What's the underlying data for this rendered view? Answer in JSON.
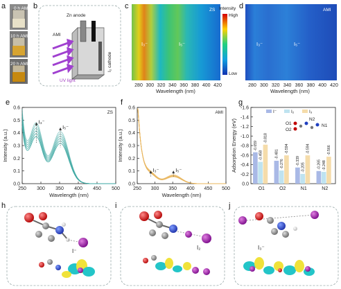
{
  "panels": {
    "a": {
      "letter": "a",
      "times": [
        "0 h AMI",
        "10 h AMI",
        "20 h AMI"
      ]
    },
    "b": {
      "letter": "b",
      "labels": {
        "anode": "Zn anode",
        "ami": "AMI",
        "cathode": "I₂ cathode",
        "uv": "UV light"
      }
    },
    "c": {
      "letter": "c",
      "tag": "ZS",
      "colorbar_title": "Intensity",
      "colorbar_high": "High",
      "colorbar_low": "Low",
      "label1": "I₃⁻",
      "label2": "I₅⁻",
      "xlabel": "Wavelength (nm)",
      "xticks": [
        "280",
        "300",
        "320",
        "340",
        "360",
        "380",
        "400",
        "420"
      ]
    },
    "d": {
      "letter": "d",
      "tag": "AMI",
      "label1": "I₃⁻",
      "label2": "I₅⁻",
      "xlabel": "Wavelength (nm)",
      "xticks": [
        "280",
        "300",
        "320",
        "340",
        "360",
        "380",
        "400",
        "420"
      ]
    },
    "h": {
      "letter": "h",
      "label": "I⁻"
    },
    "i": {
      "letter": "i",
      "label": "I₂"
    },
    "j": {
      "letter": "j",
      "label": "I₃⁻"
    }
  },
  "chart_data": [
    {
      "panel": "e",
      "type": "line",
      "tag": "ZS",
      "xlabel": "Wavelength (nm)",
      "ylabel": "Intensity (a.u.)",
      "xlim": [
        250,
        500
      ],
      "ylim": [
        0,
        0.6
      ],
      "xticks": [
        250,
        300,
        350,
        400,
        450,
        500
      ],
      "yticks": [
        0.0,
        0.1,
        0.2,
        0.3,
        0.4,
        0.5,
        0.6
      ],
      "annotations": [
        "I₃⁻",
        "I₅⁻"
      ],
      "color": "#3aa6a0",
      "n_curves": 6,
      "peaks": [
        {
          "x": 288,
          "y": 0.45
        },
        {
          "x": 352,
          "y": 0.41
        }
      ]
    },
    {
      "panel": "f",
      "type": "line",
      "tag": "AMI",
      "xlabel": "Wavelength (nm)",
      "ylabel": "Intensity (a.u.)",
      "xlim": [
        250,
        500
      ],
      "ylim": [
        0,
        0.6
      ],
      "xticks": [
        250,
        300,
        350,
        400,
        450,
        500
      ],
      "yticks": [
        0.0,
        0.1,
        0.2,
        0.3,
        0.4,
        0.5,
        0.6
      ],
      "annotations": [
        "I₃⁻",
        "I₅⁻"
      ],
      "color": "#e8b45a",
      "n_curves": 6,
      "peaks": [
        {
          "x": 288,
          "y": 0.07
        },
        {
          "x": 352,
          "y": 0.07
        }
      ]
    },
    {
      "panel": "g",
      "type": "bar",
      "ylabel": "Adsorption Energy (eV)",
      "ylim": [
        0,
        -1.6
      ],
      "yticks": [
        "0.0",
        "-0.2",
        "-0.4",
        "-0.6",
        "-0.8",
        "-1.0",
        "-1.2",
        "-1.4",
        "-1.6"
      ],
      "categories": [
        "O1",
        "O2",
        "N1",
        "N2"
      ],
      "series": [
        {
          "name": "I⁻",
          "color": "#a9b9e6",
          "values": [
            -0.659,
            -0.481,
            -0.339,
            -0.265
          ]
        },
        {
          "name": "I₂",
          "color": "#bfe3f0",
          "values": [
            -0.458,
            -0.276,
            -0.205,
            -0.248
          ]
        },
        {
          "name": "I₃",
          "color": "#f5dcaa",
          "values": [
            -0.818,
            -0.594,
            -0.594,
            -0.566
          ]
        }
      ],
      "molecule_labels": [
        "O1",
        "O2",
        "N2",
        "N1"
      ]
    }
  ]
}
